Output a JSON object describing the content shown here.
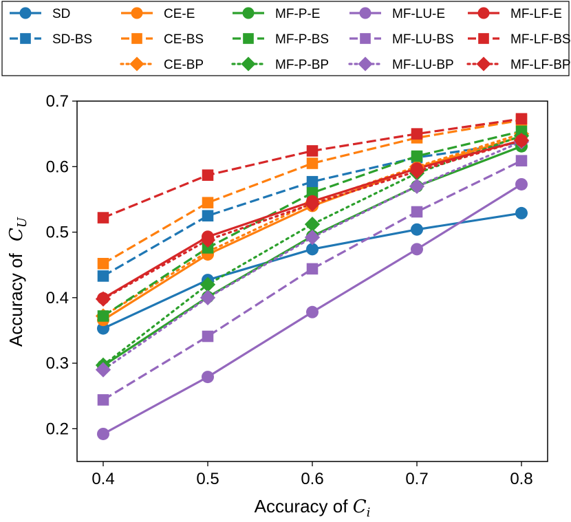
{
  "chart_data": {
    "type": "line",
    "title": "",
    "xlabel": "Accuracy of C_i",
    "xlabel_parts": {
      "text": "Accuracy of ",
      "symbol": "C",
      "subscript": "i"
    },
    "ylabel": "Accuracy of C_U",
    "ylabel_parts": {
      "text": "Accuracy of ",
      "symbol": "C",
      "subscript": "U"
    },
    "x": [
      0.4,
      0.5,
      0.6,
      0.7,
      0.8
    ],
    "x_tick_labels": [
      "0.4",
      "0.5",
      "0.6",
      "0.7",
      "0.8"
    ],
    "y_ticks": [
      0.2,
      0.3,
      0.4,
      0.5,
      0.6,
      0.7
    ],
    "y_tick_labels": [
      "0.2",
      "0.3",
      "0.4",
      "0.5",
      "0.6",
      "0.7"
    ],
    "xlim": [
      0.375,
      0.825
    ],
    "ylim": [
      0.15,
      0.7
    ],
    "grid": false,
    "legend_position": "top (above plot), 5 columns",
    "series": [
      {
        "name": "SD",
        "color": "#1f77b4",
        "linestyle": "solid",
        "marker": "circle",
        "values": [
          0.353,
          0.427,
          0.474,
          0.504,
          0.529
        ]
      },
      {
        "name": "SD-BS",
        "color": "#1f77b4",
        "linestyle": "dashed",
        "marker": "square",
        "values": [
          0.433,
          0.525,
          0.577,
          0.614,
          0.637
        ]
      },
      {
        "name": "CE-E",
        "color": "#ff7f0e",
        "linestyle": "solid",
        "marker": "circle",
        "values": [
          0.366,
          0.466,
          0.54,
          0.598,
          0.646
        ]
      },
      {
        "name": "CE-BS",
        "color": "#ff7f0e",
        "linestyle": "dashed",
        "marker": "square",
        "values": [
          0.452,
          0.545,
          0.605,
          0.644,
          0.671
        ]
      },
      {
        "name": "CE-BP",
        "color": "#ff7f0e",
        "linestyle": "dotted",
        "marker": "diamond",
        "values": [
          0.372,
          0.47,
          0.545,
          0.6,
          0.65
        ]
      },
      {
        "name": "MF-P-E",
        "color": "#2ca02c",
        "linestyle": "solid",
        "marker": "circle",
        "values": [
          0.296,
          0.401,
          0.494,
          0.57,
          0.631
        ]
      },
      {
        "name": "MF-P-BS",
        "color": "#2ca02c",
        "linestyle": "dashed",
        "marker": "square",
        "values": [
          0.372,
          0.476,
          0.56,
          0.616,
          0.654
        ]
      },
      {
        "name": "MF-P-BP",
        "color": "#2ca02c",
        "linestyle": "dotted",
        "marker": "diamond",
        "values": [
          0.297,
          0.42,
          0.512,
          0.59,
          0.647
        ]
      },
      {
        "name": "MF-LU-E",
        "color": "#9467bd",
        "linestyle": "solid",
        "marker": "circle",
        "values": [
          0.192,
          0.279,
          0.378,
          0.474,
          0.573
        ]
      },
      {
        "name": "MF-LU-BS",
        "color": "#9467bd",
        "linestyle": "dashed",
        "marker": "square",
        "values": [
          0.244,
          0.341,
          0.444,
          0.531,
          0.609
        ]
      },
      {
        "name": "MF-LU-BP",
        "color": "#9467bd",
        "linestyle": "dotted",
        "marker": "diamond",
        "values": [
          0.29,
          0.4,
          0.492,
          0.57,
          0.638
        ]
      },
      {
        "name": "MF-LF-E",
        "color": "#d62728",
        "linestyle": "solid",
        "marker": "circle",
        "values": [
          0.399,
          0.493,
          0.547,
          0.597,
          0.64
        ]
      },
      {
        "name": "MF-LF-BS",
        "color": "#d62728",
        "linestyle": "dashed",
        "marker": "square",
        "values": [
          0.522,
          0.587,
          0.624,
          0.65,
          0.673
        ]
      },
      {
        "name": "MF-LF-BP",
        "color": "#d62728",
        "linestyle": "dotted",
        "marker": "diamond",
        "values": [
          0.398,
          0.488,
          0.543,
          0.593,
          0.64
        ]
      }
    ]
  }
}
